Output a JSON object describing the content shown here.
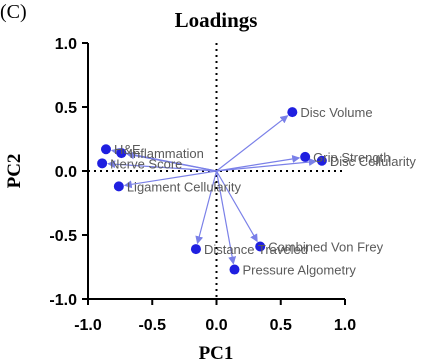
{
  "panel_label": "(C)",
  "chart_data": {
    "type": "scatter",
    "title": "Loadings",
    "xlabel": "PC1",
    "ylabel": "PC2",
    "xlim": [
      -1.0,
      1.0
    ],
    "ylim": [
      -1.0,
      1.0
    ],
    "xticks": [
      "-1.0",
      "-0.5",
      "0.0",
      "0.5",
      "1.0"
    ],
    "yticks": [
      "1.0",
      "0.5",
      "0.0",
      "-0.5",
      "-1.0"
    ],
    "xtick_values": [
      -1.0,
      -0.5,
      0.0,
      0.5,
      1.0
    ],
    "ytick_values": [
      1.0,
      0.5,
      0.0,
      -0.5,
      -1.0
    ],
    "grid": false,
    "reference_lines": "dotted lines at x=0 and y=0",
    "arrows_from_origin": true,
    "colors": {
      "point": "#1f1fe0",
      "arrow": "#7a80e8",
      "label": "#5a5a5a"
    },
    "points": [
      {
        "label": "Disc Volume",
        "x": 0.59,
        "y": 0.46
      },
      {
        "label": "Grip Strength",
        "x": 0.69,
        "y": 0.11
      },
      {
        "label": "Disc Cellularity",
        "x": 0.82,
        "y": 0.08
      },
      {
        "label": "H&E",
        "x": -0.86,
        "y": 0.17
      },
      {
        "label": "Inflammation",
        "x": -0.74,
        "y": 0.14
      },
      {
        "label": "Nerve Score",
        "x": -0.89,
        "y": 0.06
      },
      {
        "label": "Ligament Cellularity",
        "x": -0.76,
        "y": -0.12
      },
      {
        "label": "Distance Traveled",
        "x": -0.16,
        "y": -0.61
      },
      {
        "label": "Combined Von Frey",
        "x": 0.34,
        "y": -0.59
      },
      {
        "label": "Pressure Algometry",
        "x": 0.14,
        "y": -0.77
      }
    ]
  }
}
